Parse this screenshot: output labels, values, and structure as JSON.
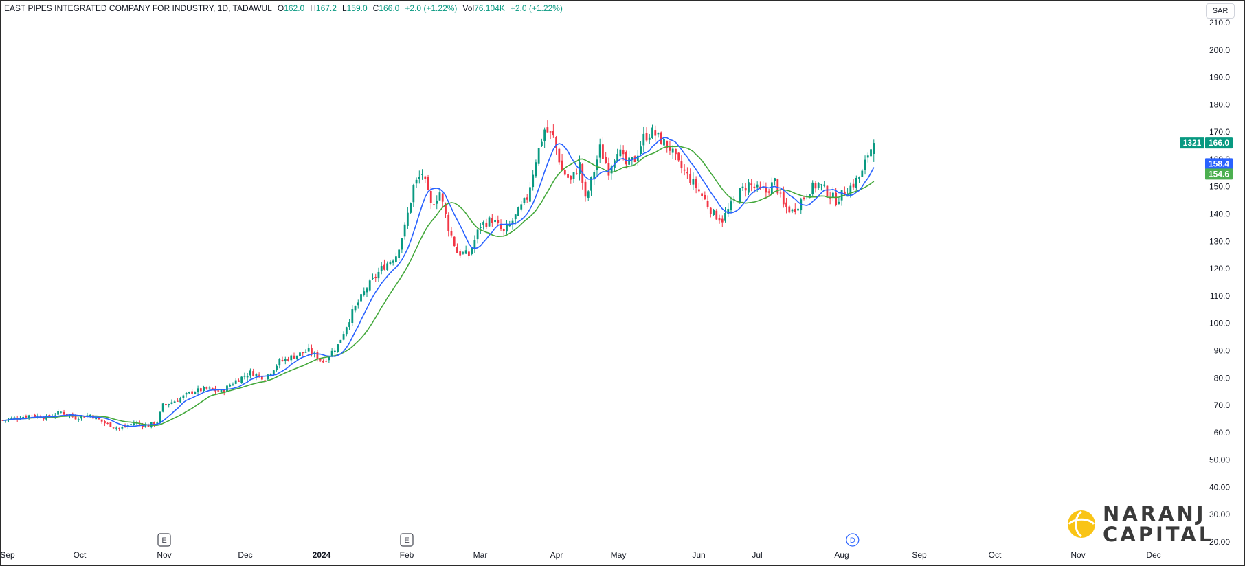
{
  "legend": {
    "symbol": "EAST PIPES INTEGRATED COMPANY FOR INDUSTRY, 1D, TADAWUL",
    "o_label": "O",
    "o_value": "162.0",
    "h_label": "H",
    "h_value": "167.2",
    "l_label": "L",
    "l_value": "159.0",
    "c_label": "C",
    "c_value": "166.0",
    "change": "+2.0 (+1.22%)",
    "vol_label": "Vol",
    "vol_value": "76.104K",
    "vol_change": "+2.0 (+1.22%)"
  },
  "currency_button": "SAR",
  "logo": {
    "line1": "NARANJ",
    "line2": "CAPITAL"
  },
  "colors": {
    "up": "#089981",
    "down": "#f23645",
    "ma_fast": "#2962ff",
    "ma_slow": "#43a83b",
    "last_price_bg": "#089981",
    "ma_fast_label_bg": "#2962ff",
    "ma_slow_label_bg": "#4caf50"
  },
  "chart_data": {
    "type": "candlestick",
    "ylim": [
      20,
      210
    ],
    "y_ticks": [
      "210.0",
      "200.0",
      "190.0",
      "180.0",
      "170.0",
      "160.0",
      "150.0",
      "140.0",
      "130.0",
      "120.0",
      "110.0",
      "100.0",
      "90.0",
      "80.0",
      "70.0",
      "60.0",
      "50.00",
      "40.00",
      "30.00",
      "20.00"
    ],
    "x_ticks": [
      {
        "label": "Sep",
        "bold": false
      },
      {
        "label": "Oct",
        "bold": false
      },
      {
        "label": "Nov",
        "bold": false
      },
      {
        "label": "Dec",
        "bold": false
      },
      {
        "label": "2024",
        "bold": true
      },
      {
        "label": "Feb",
        "bold": false
      },
      {
        "label": "Mar",
        "bold": false
      },
      {
        "label": "Apr",
        "bold": false
      },
      {
        "label": "May",
        "bold": false
      },
      {
        "label": "Jun",
        "bold": false
      },
      {
        "label": "Jul",
        "bold": false
      },
      {
        "label": "Aug",
        "bold": false
      },
      {
        "label": "Sep",
        "bold": false
      },
      {
        "label": "Oct",
        "bold": false
      },
      {
        "label": "Nov",
        "bold": false
      },
      {
        "label": "Dec",
        "bold": false
      }
    ],
    "events": [
      {
        "label": "E",
        "month_index": 2,
        "offset": 0.0,
        "style": "earnings"
      },
      {
        "label": "E",
        "month_index": 5,
        "offset": 0.0,
        "style": "earnings"
      },
      {
        "label": "D",
        "month_index": 11,
        "offset": 0.14,
        "style": "dividend"
      }
    ],
    "last_price": {
      "countdown": "1321",
      "value": "166.0",
      "price": 166.0
    },
    "ma_labels": [
      {
        "name": "MA fast",
        "value": "158.4",
        "price": 158.4
      },
      {
        "name": "MA slow",
        "value": "154.6",
        "price": 154.6
      }
    ],
    "price_anchors": [
      [
        0,
        64.5
      ],
      [
        5,
        65.5
      ],
      [
        10,
        66.5
      ],
      [
        15,
        65.5
      ],
      [
        20,
        67.5
      ],
      [
        25,
        65.5
      ],
      [
        30,
        66.5
      ],
      [
        35,
        63.5
      ],
      [
        40,
        61.5
      ],
      [
        45,
        63.5
      ],
      [
        50,
        62.5
      ],
      [
        53,
        64.0
      ],
      [
        55,
        70.0
      ],
      [
        60,
        72.0
      ],
      [
        65,
        75.0
      ],
      [
        70,
        76.0
      ],
      [
        75,
        75.0
      ],
      [
        80,
        79.0
      ],
      [
        85,
        82.0
      ],
      [
        90,
        80.0
      ],
      [
        95,
        86.0
      ],
      [
        100,
        88.0
      ],
      [
        105,
        90.0
      ],
      [
        110,
        86.0
      ],
      [
        115,
        92.0
      ],
      [
        120,
        104.0
      ],
      [
        125,
        113.0
      ],
      [
        130,
        120.0
      ],
      [
        135,
        125.0
      ],
      [
        138,
        135.0
      ],
      [
        141,
        150.0
      ],
      [
        144,
        155.0
      ],
      [
        147,
        143.0
      ],
      [
        150,
        148.0
      ],
      [
        153,
        135.0
      ],
      [
        156,
        126.0
      ],
      [
        160,
        125.0
      ],
      [
        164,
        136.0
      ],
      [
        168,
        138.0
      ],
      [
        172,
        133.0
      ],
      [
        176,
        139.0
      ],
      [
        180,
        146.0
      ],
      [
        183,
        160.0
      ],
      [
        186,
        171.0
      ],
      [
        189,
        168.0
      ],
      [
        192,
        156.0
      ],
      [
        195,
        152.0
      ],
      [
        198,
        158.0
      ],
      [
        200,
        145.0
      ],
      [
        202,
        152.0
      ],
      [
        205,
        164.0
      ],
      [
        208,
        156.0
      ],
      [
        211,
        164.0
      ],
      [
        214,
        158.0
      ],
      [
        217,
        160.0
      ],
      [
        220,
        168.0
      ],
      [
        223,
        170.0
      ],
      [
        226,
        167.0
      ],
      [
        229,
        164.0
      ],
      [
        232,
        158.0
      ],
      [
        235,
        154.0
      ],
      [
        238,
        150.0
      ],
      [
        241,
        145.0
      ],
      [
        244,
        140.0
      ],
      [
        247,
        138.0
      ],
      [
        250,
        143.0
      ],
      [
        253,
        148.0
      ],
      [
        256,
        151.0
      ],
      [
        259,
        149.0
      ],
      [
        262,
        148.0
      ],
      [
        265,
        152.0
      ],
      [
        268,
        143.0
      ],
      [
        271,
        141.0
      ],
      [
        274,
        145.0
      ],
      [
        277,
        149.0
      ],
      [
        280,
        151.0
      ],
      [
        283,
        148.0
      ],
      [
        286,
        145.0
      ],
      [
        289,
        148.0
      ],
      [
        292,
        151.0
      ],
      [
        295,
        155.0
      ],
      [
        297,
        162.0
      ],
      [
        299,
        166.0
      ]
    ]
  }
}
